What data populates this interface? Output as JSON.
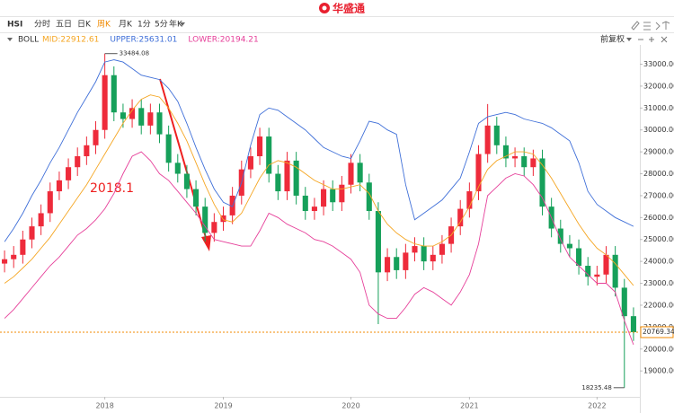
{
  "header": {
    "title": "华盛通"
  },
  "toolbar": {
    "items": [
      "HSI",
      "分时",
      "五日",
      "日K",
      "周K",
      "月K",
      "1分",
      "5分",
      "年K"
    ],
    "adjust": "前复权"
  },
  "chart_data": {
    "type": "candlestick",
    "indicator": "BOLL",
    "categories": [
      null,
      null,
      null,
      null,
      null,
      null,
      null,
      null,
      null,
      null,
      null,
      "2018",
      null,
      null,
      null,
      null,
      null,
      null,
      null,
      null,
      null,
      null,
      null,
      null,
      "2019",
      null,
      null,
      null,
      null,
      null,
      null,
      null,
      null,
      null,
      null,
      null,
      null,
      null,
      "2020",
      null,
      null,
      null,
      null,
      null,
      null,
      null,
      null,
      null,
      null,
      null,
      null,
      "2021",
      null,
      null,
      null,
      null,
      null,
      null,
      null,
      null,
      null,
      null,
      null,
      null,
      null,
      "2022",
      null,
      null,
      null,
      null
    ],
    "open": [
      23900,
      24100,
      24300,
      25000,
      25600,
      26200,
      27200,
      27700,
      28300,
      28800,
      29300,
      30000,
      32500,
      30800,
      30500,
      31000,
      30200,
      30800,
      29800,
      28500,
      28000,
      27300,
      26500,
      25300,
      25800,
      26100,
      27000,
      28200,
      28800,
      29700,
      28000,
      27200,
      28600,
      27000,
      26300,
      26500,
      27300,
      26700,
      27500,
      28500,
      27600,
      26300,
      23500,
      24200,
      23600,
      24400,
      24700,
      24000,
      24300,
      24800,
      25600,
      26400,
      27200,
      28900,
      30200,
      29300,
      28700,
      28800,
      28300,
      28700,
      26500,
      25500,
      24800,
      24600,
      23800,
      23300,
      23400,
      24300,
      22800,
      21500
    ],
    "high": [
      24500,
      24700,
      25400,
      26000,
      26600,
      27600,
      28100,
      28700,
      29200,
      29700,
      30400,
      33484.08,
      32900,
      31200,
      31400,
      31400,
      31200,
      31200,
      30200,
      28900,
      28400,
      27700,
      26900,
      26200,
      26500,
      27400,
      28600,
      29200,
      30100,
      30100,
      28400,
      29000,
      29000,
      27400,
      26900,
      27700,
      27700,
      27900,
      28900,
      28900,
      28000,
      26700,
      24600,
      24600,
      24800,
      25100,
      25100,
      24700,
      25200,
      26000,
      26800,
      27600,
      29300,
      31183,
      30600,
      29700,
      29200,
      29200,
      29100,
      29100,
      26900,
      25900,
      25200,
      25000,
      24200,
      23800,
      24700,
      24700,
      23200,
      21900
    ],
    "low": [
      23500,
      23700,
      23900,
      24600,
      25200,
      25800,
      26800,
      27300,
      27900,
      28400,
      28900,
      29600,
      30400,
      30100,
      30100,
      29800,
      29800,
      29400,
      28100,
      27600,
      26900,
      26100,
      24900,
      24900,
      25400,
      25700,
      26600,
      27800,
      28400,
      27600,
      26800,
      26800,
      26600,
      25900,
      25900,
      26100,
      26300,
      26300,
      27100,
      27200,
      25900,
      21139,
      23100,
      23200,
      23200,
      24000,
      23600,
      23600,
      23900,
      24400,
      25200,
      26000,
      26800,
      28500,
      28900,
      28300,
      28300,
      27900,
      27900,
      26100,
      25100,
      24400,
      24200,
      23400,
      22900,
      22900,
      23000,
      22400,
      18235.48,
      20369.34
    ],
    "close": [
      24100,
      24300,
      25000,
      25600,
      26200,
      27200,
      27700,
      28300,
      28800,
      29300,
      30000,
      32500,
      30800,
      30500,
      31000,
      30200,
      30800,
      29800,
      28500,
      28000,
      27300,
      26500,
      25300,
      25800,
      26100,
      27000,
      28200,
      28800,
      29700,
      28000,
      27200,
      28600,
      27000,
      26300,
      26500,
      27300,
      26700,
      27500,
      28500,
      27600,
      26300,
      23500,
      24200,
      23600,
      24400,
      24700,
      24000,
      24300,
      24800,
      25600,
      26400,
      27200,
      28900,
      30200,
      29300,
      28700,
      28800,
      28300,
      28700,
      26500,
      25500,
      24800,
      24600,
      23800,
      23300,
      23400,
      24300,
      22800,
      21500,
      20769.34
    ],
    "up_color": "#ee2b3b",
    "down_color": "#16a05a",
    "series": [
      {
        "name": "MID:22912.61",
        "color": "#f5a623",
        "values": [
          23000,
          23300,
          23700,
          24100,
          24600,
          25100,
          25700,
          26300,
          26900,
          27500,
          28200,
          28900,
          29600,
          30300,
          30900,
          31400,
          31600,
          31500,
          31000,
          30300,
          29500,
          28500,
          27500,
          26600,
          25900,
          25800,
          26200,
          27000,
          27800,
          28400,
          28600,
          28500,
          28300,
          28000,
          27700,
          27500,
          27300,
          27300,
          27400,
          27500,
          27100,
          26300,
          25700,
          25300,
          25000,
          24800,
          24700,
          24700,
          24900,
          25200,
          25800,
          26500,
          27400,
          28200,
          28600,
          28800,
          29000,
          29000,
          28900,
          28400,
          27800,
          27100,
          26400,
          25700,
          25100,
          24600,
          24300,
          23900,
          23400,
          22900
        ]
      },
      {
        "name": "UPPER:25631.01",
        "color": "#3f6fd8",
        "values": [
          24900,
          25500,
          26200,
          27000,
          27700,
          28500,
          29200,
          30000,
          30800,
          31500,
          32200,
          33100,
          33200,
          33100,
          32800,
          32500,
          32400,
          32300,
          31900,
          31300,
          30300,
          29200,
          28200,
          27300,
          26700,
          26500,
          27600,
          29300,
          30700,
          31000,
          30900,
          30600,
          30300,
          30000,
          29600,
          29200,
          29000,
          28800,
          28700,
          29500,
          30400,
          30300,
          30000,
          29800,
          27500,
          25900,
          26200,
          26500,
          26800,
          27300,
          27800,
          29000,
          30300,
          30600,
          30700,
          30800,
          30700,
          30500,
          30400,
          30300,
          30100,
          29800,
          29500,
          28500,
          27200,
          26600,
          26300,
          26000,
          25800,
          25600
        ]
      },
      {
        "name": "LOWER:20194.21",
        "color": "#e6409a",
        "values": [
          21400,
          21800,
          22300,
          22800,
          23300,
          23800,
          24200,
          24700,
          25200,
          25500,
          25900,
          26400,
          27100,
          28000,
          28800,
          29000,
          28600,
          28000,
          27700,
          27200,
          26700,
          26200,
          25600,
          25000,
          24900,
          24800,
          24700,
          24700,
          25400,
          26200,
          26000,
          25700,
          25500,
          25300,
          25000,
          24900,
          24700,
          24400,
          24100,
          23500,
          22000,
          21600,
          21400,
          21400,
          21900,
          22500,
          22800,
          22600,
          22300,
          22000,
          22600,
          23400,
          24800,
          27000,
          27400,
          27800,
          28000,
          27900,
          27500,
          26900,
          26000,
          25000,
          24200,
          23800,
          23400,
          23000,
          23000,
          22600,
          21300,
          20200
        ]
      }
    ],
    "annotations": [
      "2018.1"
    ],
    "ylim": [
      17900,
      33800
    ],
    "yticks": [
      {
        "value": 19000,
        "label": "19000.00"
      },
      {
        "value": 20000,
        "label": "20000.00"
      },
      {
        "value": 21000,
        "label": "21000.00"
      },
      {
        "value": 22000,
        "label": "22000.00"
      },
      {
        "value": 23000,
        "label": "23000.00"
      },
      {
        "value": 24000,
        "label": "24000.00"
      },
      {
        "value": 25000,
        "label": "25000.00"
      },
      {
        "value": 26000,
        "label": "26000.00"
      },
      {
        "value": 27000,
        "label": "27000.00"
      },
      {
        "value": 28000,
        "label": "28000.00"
      },
      {
        "value": 29000,
        "label": "29000.00"
      },
      {
        "value": 30000,
        "label": "30000.00"
      },
      {
        "value": 31000,
        "label": "31000.00"
      },
      {
        "value": 32000,
        "label": "32000.00"
      },
      {
        "value": 33000,
        "label": "33000.00"
      }
    ],
    "grid": false
  }
}
